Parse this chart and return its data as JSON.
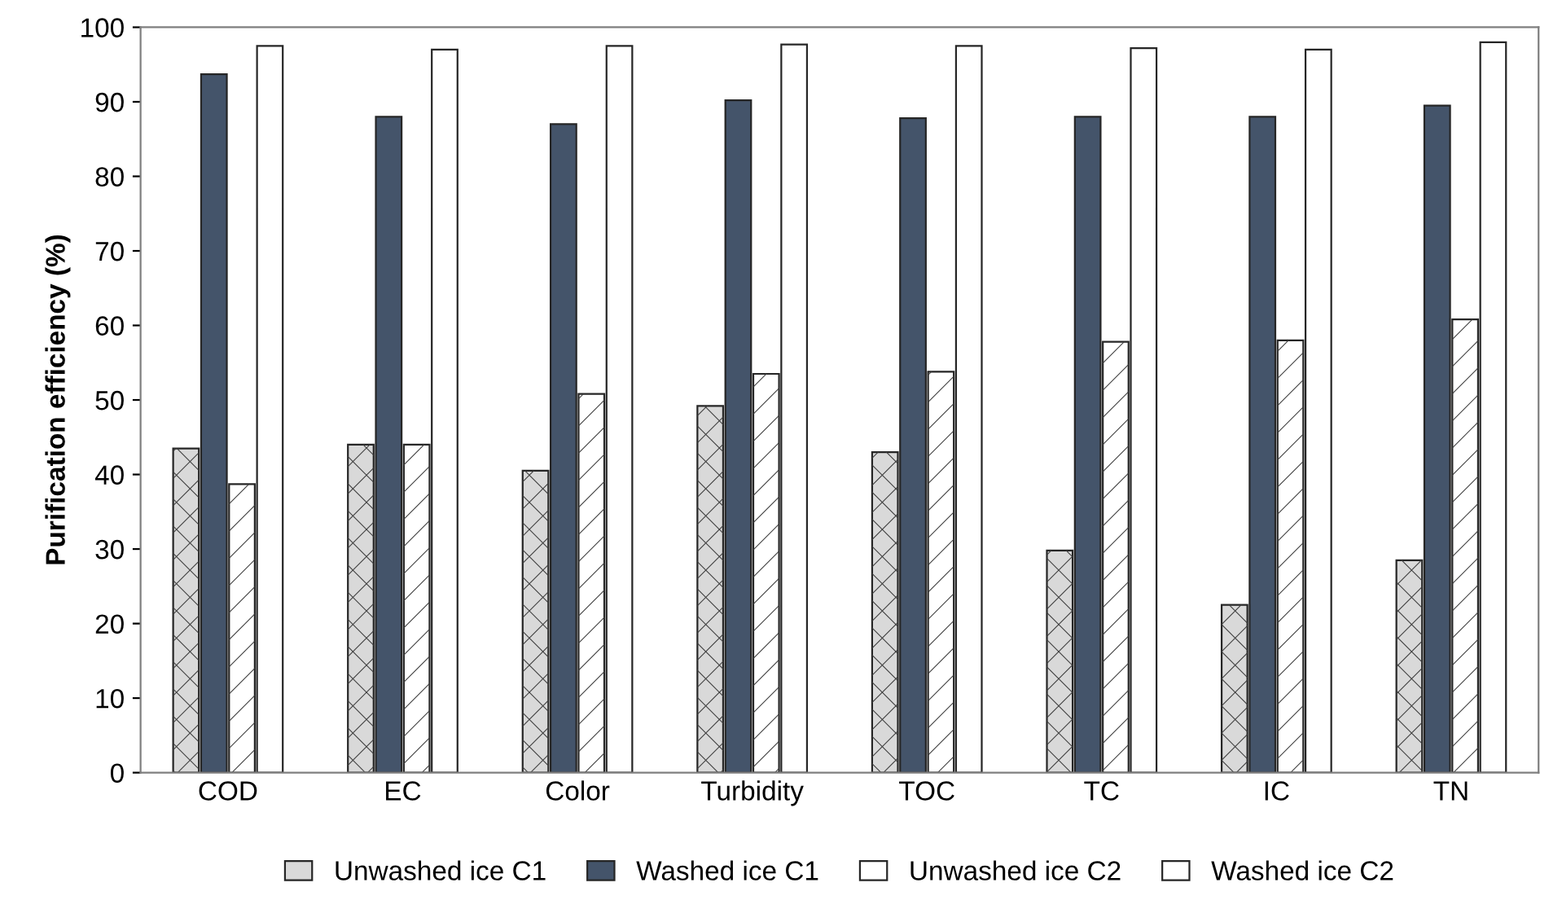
{
  "chart_data": {
    "type": "bar",
    "ylabel": "Purification efficiency (%)",
    "categories": [
      "COD",
      "EC",
      "Color",
      "Turbidity",
      "TOC",
      "TC",
      "IC",
      "TN"
    ],
    "series": [
      {
        "name": "Unwashed ice C1",
        "color": "#d9d9d9",
        "values": [
          43.5,
          44,
          40.5,
          49.2,
          43,
          29.8,
          22.5,
          28.5
        ]
      },
      {
        "name": "Washed ice C1",
        "color": "#44546a",
        "values": [
          93.7,
          88,
          87,
          90.2,
          87.8,
          88,
          88,
          89.5
        ]
      },
      {
        "name": "Unwashed ice C2",
        "color": "#ffffff",
        "values": [
          38.7,
          44,
          50.8,
          53.5,
          53.8,
          57.8,
          58,
          60.8
        ]
      },
      {
        "name": "Washed ice C2",
        "color": "#ffffff",
        "values": [
          97.5,
          97,
          97.5,
          97.7,
          97.5,
          97.2,
          97,
          98
        ]
      }
    ],
    "ylim": [
      0,
      100
    ],
    "yticks": [
      0,
      10,
      20,
      30,
      40,
      50,
      60,
      70,
      80,
      90,
      100
    ],
    "grid": false,
    "legend": "bottom"
  }
}
